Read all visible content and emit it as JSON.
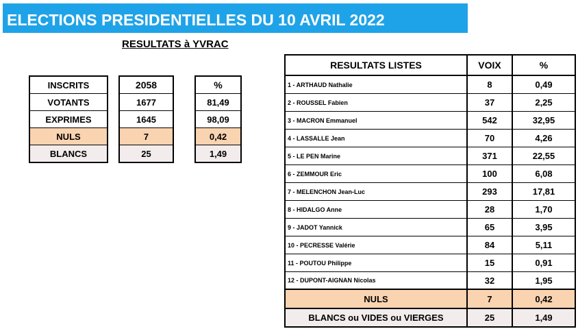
{
  "header": {
    "title": "ELECTIONS PRESIDENTIELLES DU 10 AVRIL 2022",
    "subtitle": "RESULTATS à YVRAC"
  },
  "summary": {
    "labels": [
      "INSCRITS",
      "VOTANTS",
      "EXPRIMES",
      "NULS",
      "BLANCS"
    ],
    "values": [
      "2058",
      "1677",
      "1645",
      "7",
      "25"
    ],
    "percent_header": "%",
    "percents": [
      "81,49",
      "98,09",
      "0,42",
      "1,49"
    ]
  },
  "results": {
    "headers": {
      "name": "RESULTATS  LISTES",
      "voix": "VOIX",
      "pct": "%"
    },
    "candidates": [
      {
        "name": "1 - ARTHAUD Nathalie",
        "voix": "8",
        "pct": "0,49"
      },
      {
        "name": "2 - ROUSSEL Fabien",
        "voix": "37",
        "pct": "2,25"
      },
      {
        "name": "3 - MACRON Emmanuel",
        "voix": "542",
        "pct": "32,95"
      },
      {
        "name": "4 - LASSALLE Jean",
        "voix": "70",
        "pct": "4,26"
      },
      {
        "name": "5 - LE PEN Marine",
        "voix": "371",
        "pct": "22,55"
      },
      {
        "name": "6 - ZEMMOUR Eric",
        "voix": "100",
        "pct": "6,08"
      },
      {
        "name": "7 - MELENCHON Jean-Luc",
        "voix": "293",
        "pct": "17,81"
      },
      {
        "name": "8 - HIDALGO Anne",
        "voix": "28",
        "pct": "1,70"
      },
      {
        "name": "9 - JADOT Yannick",
        "voix": "65",
        "pct": "3,95"
      },
      {
        "name": "10 - PECRESSE Valérie",
        "voix": "84",
        "pct": "5,11"
      },
      {
        "name": "11 - POUTOU Philippe",
        "voix": "15",
        "pct": "0,91"
      },
      {
        "name": "12 - DUPONT-AIGNAN Nicolas",
        "voix": "32",
        "pct": "1,95"
      }
    ],
    "nuls": {
      "name": "NULS",
      "voix": "7",
      "pct": "0,42"
    },
    "blancs": {
      "name": "BLANCS ou VIDES ou VIERGES",
      "voix": "25",
      "pct": "1,49"
    }
  },
  "colors": {
    "banner": "#1fa3e8",
    "nuls_fill": "#fad3b1",
    "blancs_fill": "#f2ecec"
  }
}
